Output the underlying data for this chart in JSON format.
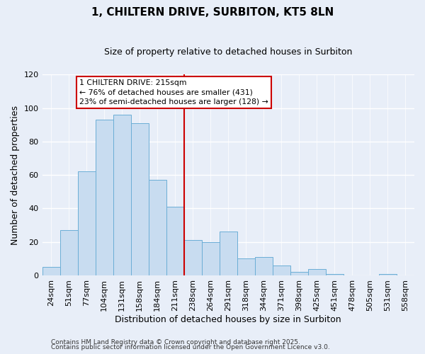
{
  "title": "1, CHILTERN DRIVE, SURBITON, KT5 8LN",
  "subtitle": "Size of property relative to detached houses in Surbiton",
  "xlabel": "Distribution of detached houses by size in Surbiton",
  "ylabel": "Number of detached properties",
  "categories": [
    "24sqm",
    "51sqm",
    "77sqm",
    "104sqm",
    "131sqm",
    "158sqm",
    "184sqm",
    "211sqm",
    "238sqm",
    "264sqm",
    "291sqm",
    "318sqm",
    "344sqm",
    "371sqm",
    "398sqm",
    "425sqm",
    "451sqm",
    "478sqm",
    "505sqm",
    "531sqm",
    "558sqm"
  ],
  "values": [
    5,
    27,
    62,
    93,
    96,
    91,
    57,
    41,
    21,
    20,
    26,
    10,
    11,
    6,
    2,
    4,
    1,
    0,
    0,
    1,
    0
  ],
  "bar_color": "#c8dcf0",
  "bar_edge_color": "#6baed6",
  "vline_color": "#cc0000",
  "ylim": [
    0,
    120
  ],
  "yticks": [
    0,
    20,
    40,
    60,
    80,
    100,
    120
  ],
  "annotation_title": "1 CHILTERN DRIVE: 215sqm",
  "annotation_line1": "← 76% of detached houses are smaller (431)",
  "annotation_line2": "23% of semi-detached houses are larger (128) →",
  "annotation_box_color": "#ffffff",
  "annotation_box_edge": "#cc0000",
  "footer1": "Contains HM Land Registry data © Crown copyright and database right 2025.",
  "footer2": "Contains public sector information licensed under the Open Government Licence v3.0.",
  "background_color": "#e8eef8",
  "grid_color": "#ffffff",
  "title_fontsize": 11,
  "subtitle_fontsize": 9,
  "axis_label_fontsize": 9,
  "tick_fontsize": 8
}
